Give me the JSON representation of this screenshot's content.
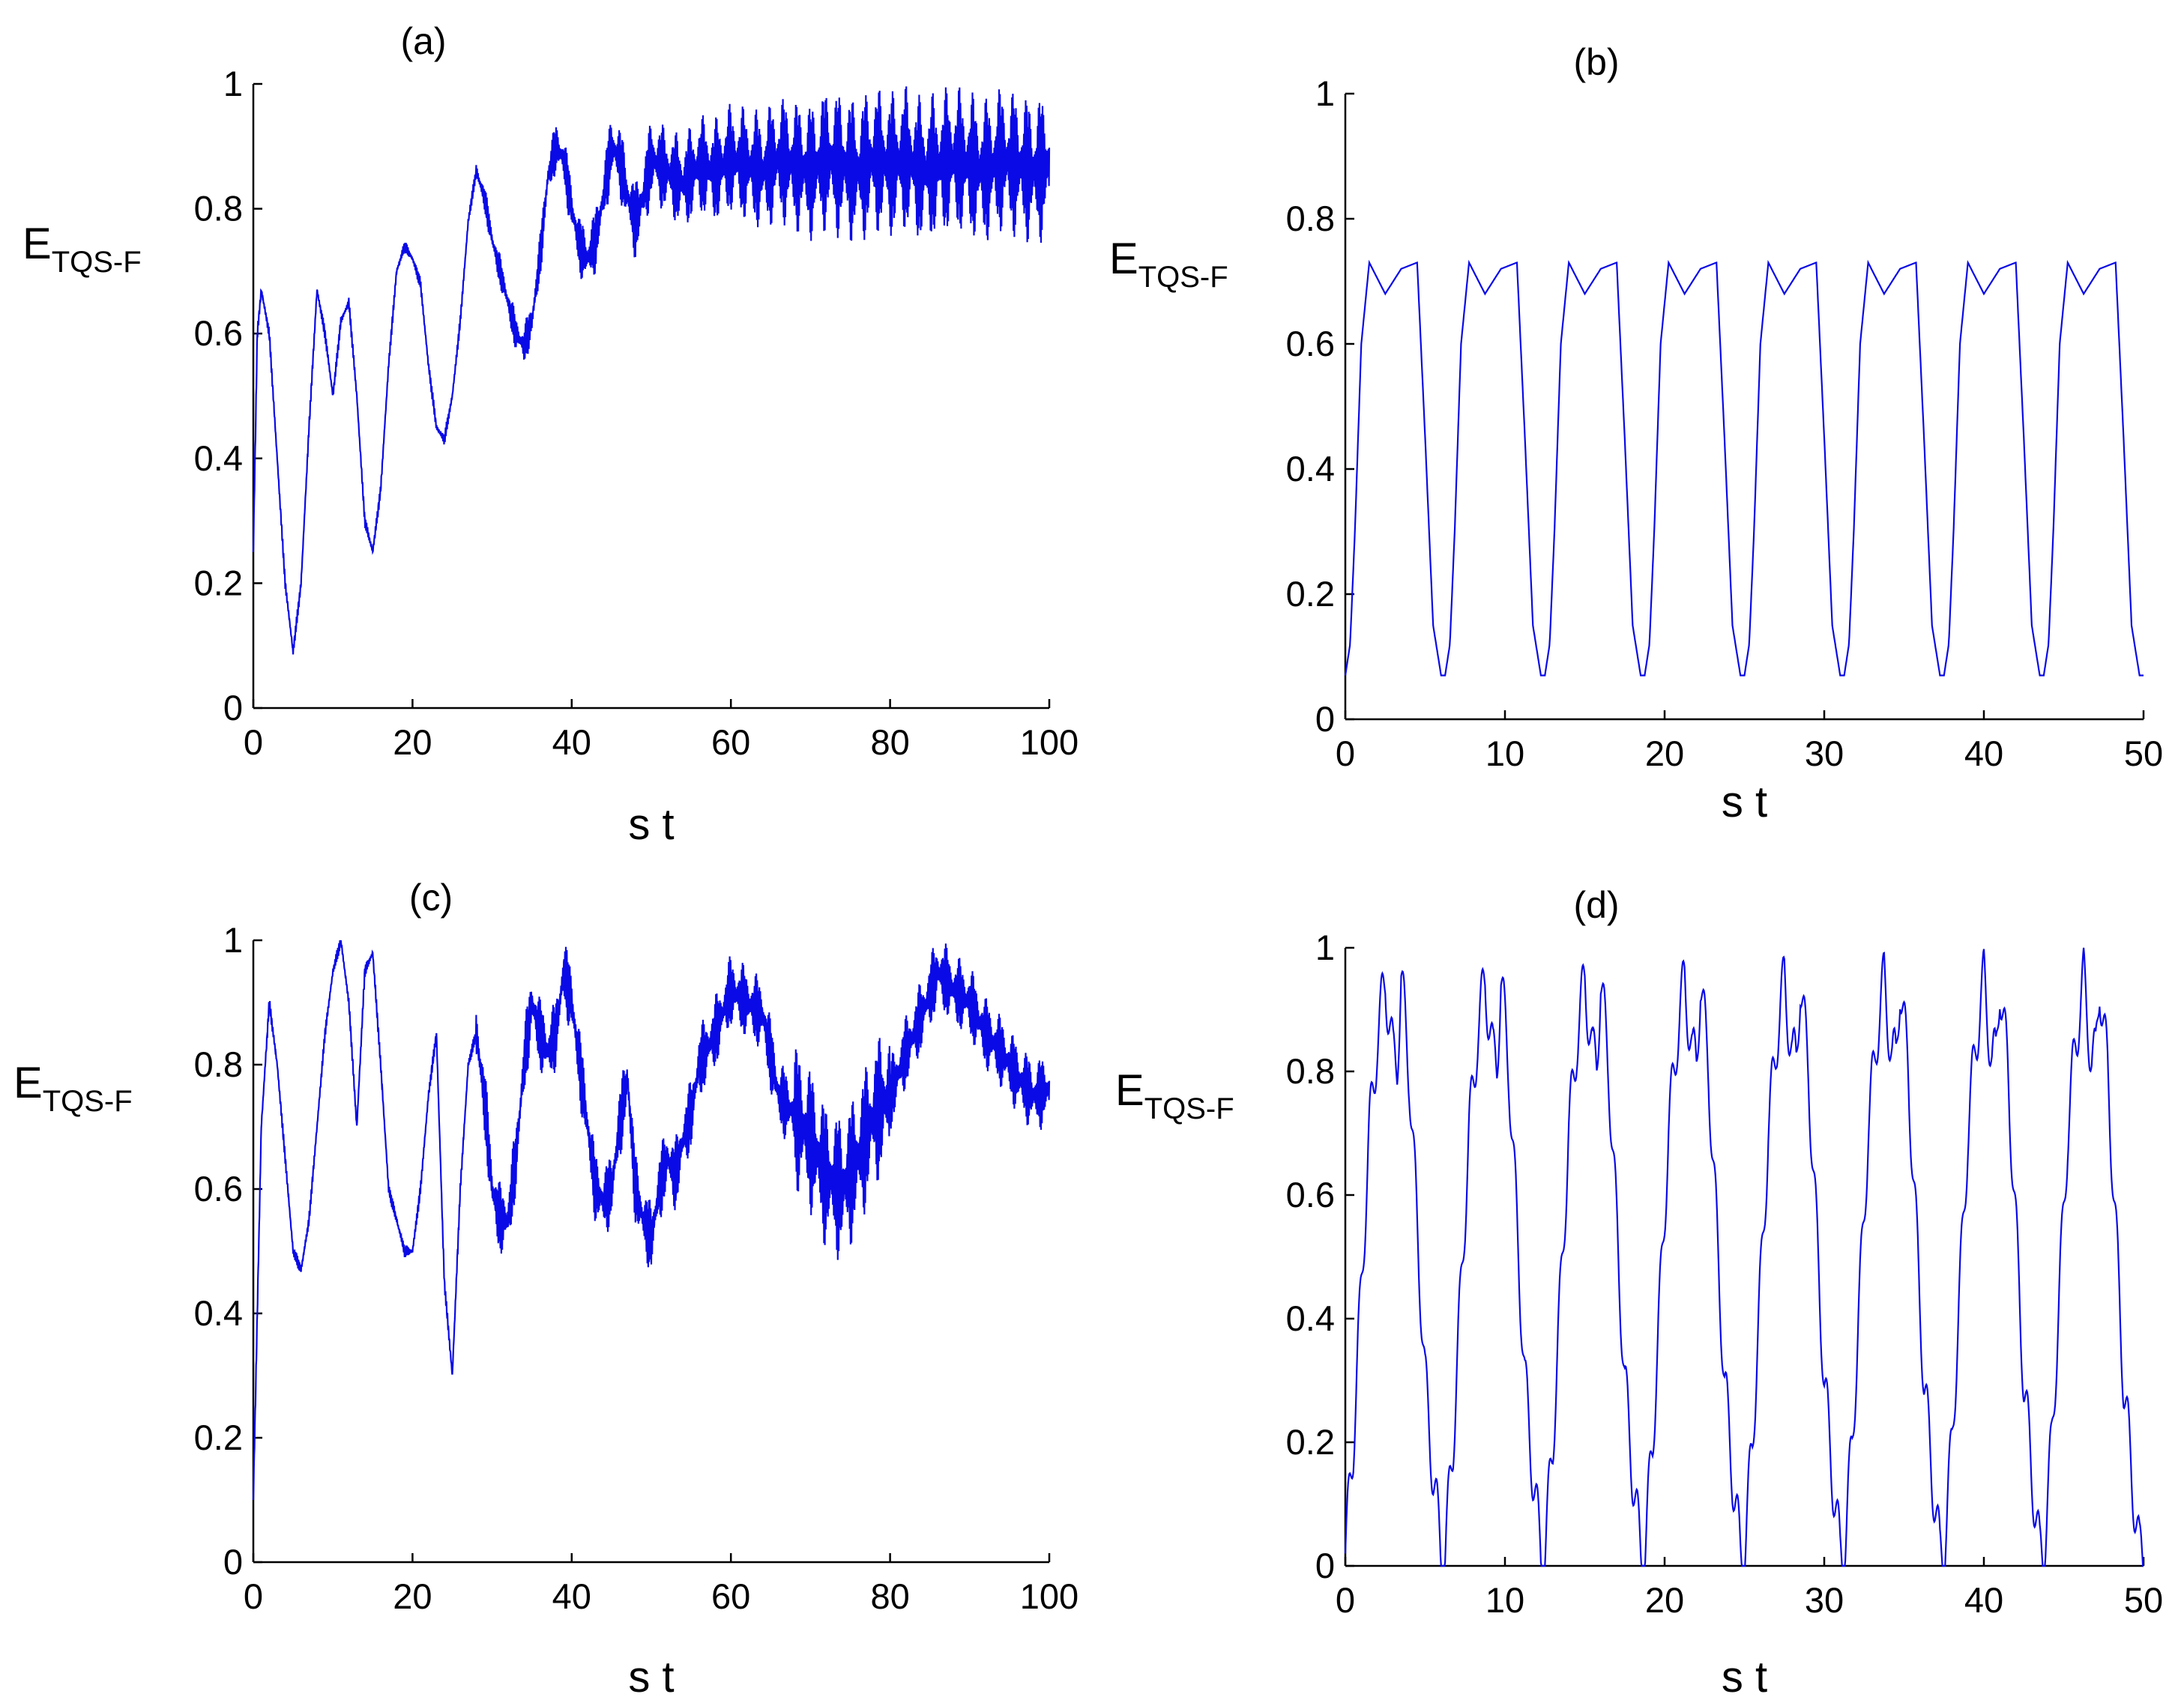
{
  "chart_data": [
    {
      "type": "line",
      "panel": "(a)",
      "title": "(a)",
      "xlabel": "s t",
      "ylabel_main": "E",
      "ylabel_sub": "TQS-F",
      "xlim": [
        0,
        100
      ],
      "ylim": [
        0,
        1
      ],
      "xticks": [
        "0",
        "20",
        "40",
        "60",
        "80",
        "100"
      ],
      "yticks": [
        "0",
        "0.2",
        "0.4",
        "0.6",
        "0.8",
        "1"
      ],
      "color": "#0a0ae6",
      "series": [
        {
          "x": [
            0,
            0.5,
            1,
            2,
            3,
            4,
            5,
            6,
            7,
            8,
            9,
            10,
            11,
            12,
            13,
            14,
            15,
            16,
            17,
            18,
            19,
            20,
            21,
            22,
            23,
            24,
            25,
            26,
            27,
            28,
            29,
            30,
            31,
            32,
            33,
            34,
            35,
            36,
            37,
            38,
            39,
            40,
            41,
            42,
            43,
            44,
            45,
            46,
            47,
            48,
            49,
            50,
            52,
            54,
            56,
            58,
            60,
            62,
            64,
            66,
            68,
            70,
            72,
            74,
            76,
            78,
            80,
            82,
            84,
            86,
            88,
            90,
            92,
            94,
            96,
            98,
            100
          ],
          "y": [
            0.25,
            0.6,
            0.67,
            0.6,
            0.4,
            0.2,
            0.09,
            0.2,
            0.45,
            0.67,
            0.6,
            0.5,
            0.62,
            0.65,
            0.5,
            0.3,
            0.25,
            0.35,
            0.55,
            0.7,
            0.74,
            0.72,
            0.68,
            0.55,
            0.45,
            0.43,
            0.5,
            0.62,
            0.78,
            0.86,
            0.82,
            0.75,
            0.7,
            0.65,
            0.6,
            0.58,
            0.62,
            0.72,
            0.85,
            0.9,
            0.88,
            0.8,
            0.74,
            0.72,
            0.75,
            0.82,
            0.9,
            0.88,
            0.82,
            0.78,
            0.82,
            0.88,
            0.86,
            0.84,
            0.87,
            0.86,
            0.88,
            0.87,
            0.86,
            0.88,
            0.87,
            0.86,
            0.88,
            0.87,
            0.86,
            0.88,
            0.87,
            0.88,
            0.86,
            0.87,
            0.88,
            0.87,
            0.86,
            0.88,
            0.87,
            0.86,
            0.87
          ]
        }
      ]
    },
    {
      "type": "line",
      "panel": "(b)",
      "title": "(b)",
      "xlabel": "s t",
      "ylabel_main": "E",
      "ylabel_sub": "TQS-F",
      "xlim": [
        0,
        50
      ],
      "ylim": [
        0,
        1
      ],
      "xticks": [
        "0",
        "10",
        "20",
        "30",
        "40",
        "50"
      ],
      "yticks": [
        "0",
        "0.2",
        "0.4",
        "0.6",
        "0.8",
        "1"
      ],
      "color": "#0a0ae6",
      "period": 6.25,
      "series": [
        {
          "x": [
            0,
            0.3,
            0.6,
            1,
            1.5,
            2.5,
            3.5,
            4.5,
            5,
            5.5,
            6,
            6.25
          ],
          "y": [
            0.07,
            0.12,
            0.3,
            0.6,
            0.73,
            0.68,
            0.72,
            0.73,
            0.45,
            0.15,
            0.07,
            0.07
          ]
        }
      ]
    },
    {
      "type": "line",
      "panel": "(c)",
      "title": "(c)",
      "xlabel": "s t",
      "ylabel_main": "E",
      "ylabel_sub": "TQS-F",
      "xlim": [
        0,
        100
      ],
      "ylim": [
        0,
        1
      ],
      "xticks": [
        "0",
        "20",
        "40",
        "60",
        "80",
        "100"
      ],
      "yticks": [
        "0",
        "0.2",
        "0.4",
        "0.6",
        "0.8",
        "1"
      ],
      "color": "#0a0ae6",
      "series": [
        {
          "x": [
            0,
            1,
            2,
            3,
            4,
            5,
            6,
            7,
            8,
            9,
            10,
            11,
            12,
            13,
            14,
            15,
            16,
            17,
            18,
            19,
            20,
            21,
            22,
            23,
            24,
            25,
            26,
            27,
            28,
            29,
            30,
            31,
            32,
            33,
            34,
            35,
            36,
            37,
            38,
            39,
            40,
            41,
            42,
            43,
            44,
            45,
            46,
            47,
            48,
            49,
            50,
            51,
            52,
            53,
            54,
            55,
            56,
            58,
            60,
            62,
            64,
            66,
            68,
            70,
            72,
            74,
            76,
            78,
            80,
            82,
            84,
            86,
            88,
            90,
            92,
            94,
            96,
            98,
            100
          ],
          "y": [
            0.1,
            0.7,
            0.9,
            0.8,
            0.65,
            0.5,
            0.47,
            0.55,
            0.7,
            0.85,
            0.95,
            1.0,
            0.9,
            0.7,
            0.95,
            0.98,
            0.8,
            0.6,
            0.55,
            0.5,
            0.5,
            0.6,
            0.75,
            0.85,
            0.45,
            0.3,
            0.6,
            0.8,
            0.85,
            0.75,
            0.6,
            0.55,
            0.55,
            0.65,
            0.8,
            0.9,
            0.85,
            0.82,
            0.85,
            0.95,
            0.9,
            0.8,
            0.7,
            0.6,
            0.58,
            0.6,
            0.7,
            0.78,
            0.6,
            0.55,
            0.52,
            0.6,
            0.65,
            0.62,
            0.68,
            0.72,
            0.8,
            0.85,
            0.92,
            0.9,
            0.88,
            0.75,
            0.72,
            0.68,
            0.62,
            0.6,
            0.65,
            0.72,
            0.75,
            0.82,
            0.88,
            0.95,
            0.92,
            0.9,
            0.85,
            0.82,
            0.78,
            0.75,
            0.76
          ]
        }
      ]
    },
    {
      "type": "line",
      "panel": "(d)",
      "title": "(d)",
      "xlabel": "s t",
      "ylabel_main": "E",
      "ylabel_sub": "TQS-F",
      "xlim": [
        0,
        50
      ],
      "ylim": [
        0,
        1
      ],
      "xticks": [
        "0",
        "10",
        "20",
        "30",
        "40",
        "50"
      ],
      "yticks": [
        "0",
        "0.2",
        "0.4",
        "0.6",
        "0.8",
        "1"
      ],
      "color": "#0a0ae6",
      "period": 6.25,
      "series": [
        {
          "x": [
            0,
            0.5,
            1,
            1.5,
            2,
            2.5,
            3,
            3.25,
            3.5,
            4,
            4.5,
            5,
            5.5,
            6,
            6.25
          ],
          "y": [
            0.02,
            0.2,
            0.45,
            0.7,
            0.85,
            0.95,
            0.82,
            0.82,
            0.95,
            0.8,
            0.55,
            0.3,
            0.15,
            0.02,
            0.02
          ]
        }
      ]
    }
  ]
}
